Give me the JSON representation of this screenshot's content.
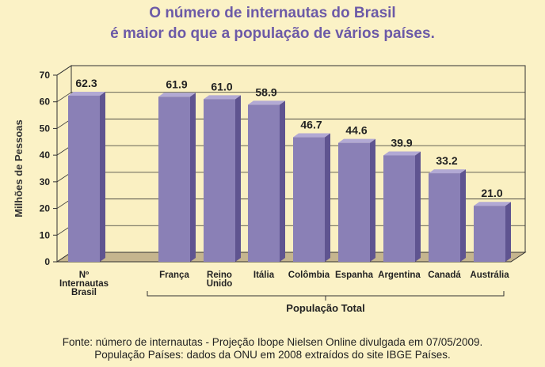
{
  "title_line1": "O número de internautas do Brasil",
  "title_line2": "é maior do que a população de vários países.",
  "source_line1": "Fonte: número de internautas - Projeção Ibope Nielsen Online divulgada em 07/05/2009.",
  "source_line2": "População Países: dados da ONU em 2008 extraídos do site IBGE Países.",
  "colors": {
    "background": "#fbf2c6",
    "title": "#6c5aa7",
    "bar_front": "#8a80b6",
    "bar_side": "#5f5490",
    "bar_top": "#b2a9d4",
    "wall": "#faf0c2",
    "floor": "#c5b58e"
  },
  "chart_data": {
    "type": "bar",
    "ylabel": "Milhões de Pessoas",
    "ylim": [
      0,
      70
    ],
    "yticks": [
      "0",
      "10",
      "20",
      "30",
      "40",
      "50",
      "60",
      "70"
    ],
    "grid": true,
    "categories": [
      [
        "Nº",
        "Internautas",
        "Brasil"
      ],
      [
        "França"
      ],
      [
        "Reino",
        "Unido"
      ],
      [
        "Itália"
      ],
      [
        "Colômbia"
      ],
      [
        "Espanha"
      ],
      [
        "Argentina"
      ],
      [
        "Canadá"
      ],
      [
        "Austrália"
      ]
    ],
    "values": [
      62.3,
      61.9,
      61.0,
      58.9,
      46.7,
      44.6,
      39.9,
      33.2,
      21.0
    ],
    "value_labels": [
      "62.3",
      "61.9",
      "61.0",
      "58.9",
      "46.7",
      "44.6",
      "39.9",
      "33.2",
      "21.0"
    ],
    "group_label": "População Total"
  }
}
